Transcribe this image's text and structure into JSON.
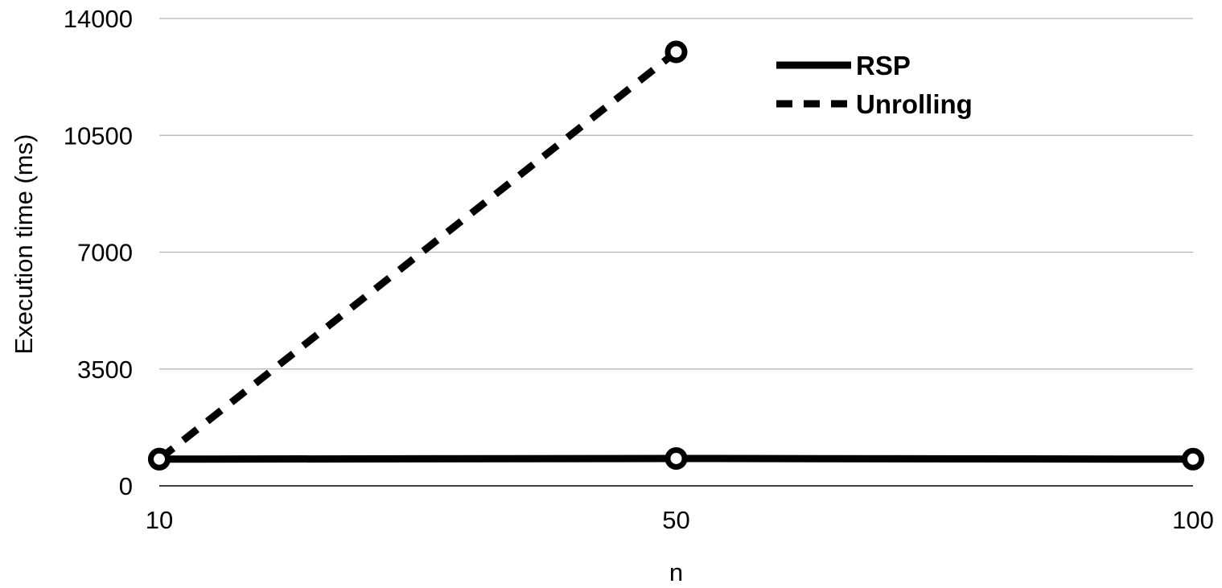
{
  "chart_data": {
    "type": "line",
    "x": [
      "10",
      "50",
      "100"
    ],
    "xlabel": "n",
    "ylabel": "Execution time (ms)",
    "ylim": [
      0,
      14000
    ],
    "yticks": [
      "0",
      "3500",
      "7000",
      "10500",
      "14000"
    ],
    "grid": true,
    "legend_position": "top-right",
    "series": [
      {
        "name": "RSP",
        "style": "solid",
        "color": "#000000",
        "values": [
          800,
          820,
          800
        ]
      },
      {
        "name": "Unrolling",
        "style": "dashed",
        "color": "#000000",
        "values": [
          800,
          13000,
          null
        ]
      }
    ]
  }
}
